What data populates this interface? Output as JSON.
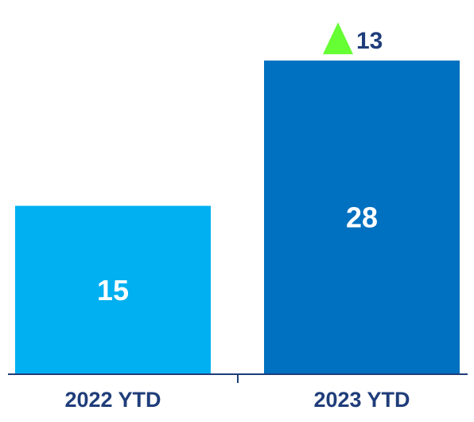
{
  "chart_data": {
    "type": "bar",
    "categories": [
      "2022 YTD",
      "2023 YTD"
    ],
    "values": [
      15,
      28
    ],
    "title": "",
    "xlabel": "",
    "ylabel": "",
    "ylim": [
      0,
      30
    ],
    "grid": false,
    "legend": "none",
    "bar_colors": [
      "#00b0f0",
      "#0070c0"
    ],
    "value_label_color": "#ffffff",
    "axis_label_color": "#1f3d7a",
    "change_annotation": {
      "value": "13",
      "direction": "up",
      "indicator": "up-triangle-icon",
      "color": "#66ff33",
      "text_color": "#1f3d7a"
    }
  }
}
